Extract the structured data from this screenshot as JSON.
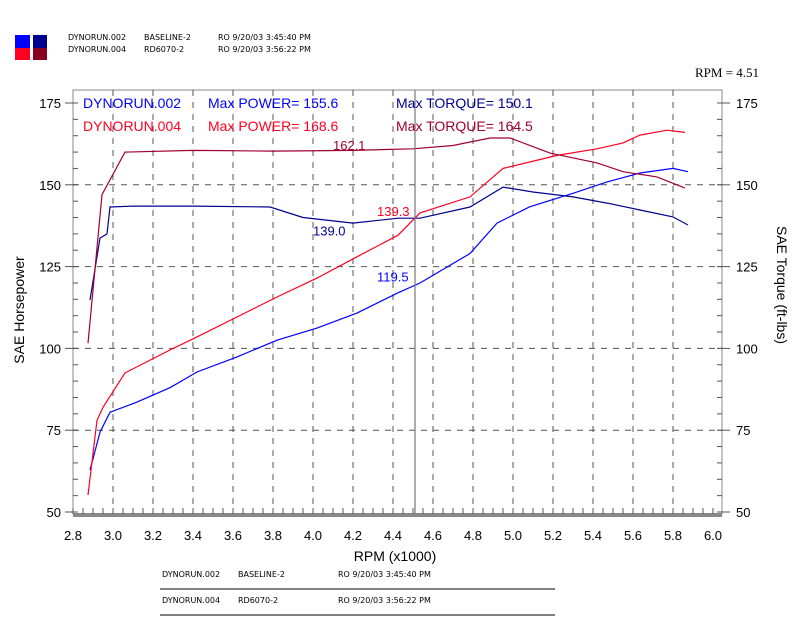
{
  "header": {
    "runs": [
      {
        "name": "DYNORUN.002",
        "desc": "BASELINE-2",
        "date": "RO  9/20/03 3:45:40 PM",
        "hp_color": "#0000ff",
        "tq_color": "#000090"
      },
      {
        "name": "DYNORUN.004",
        "desc": "RD6070-2",
        "date": "RO  9/20/03 3:56:22 PM",
        "hp_color": "#ff0020",
        "tq_color": "#a00030"
      }
    ],
    "cursor_readout": "RPM = 4.51"
  },
  "chart_data": {
    "type": "line",
    "xlabel": "RPM (x1000)",
    "ylabel": "SAE Horsepower",
    "y2label": "SAE Torque (ft-lbs)",
    "xlim": [
      2.8,
      6.0
    ],
    "ylim": [
      50,
      175
    ],
    "y2lim": [
      50,
      175
    ],
    "xticks": [
      "2.8",
      "3.0",
      "3.2",
      "3.4",
      "3.6",
      "3.8",
      "4.0",
      "4.2",
      "4.4",
      "4.6",
      "4.8",
      "5.0",
      "5.2",
      "5.4",
      "5.6",
      "5.8",
      "6.0"
    ],
    "yticks": [
      "175",
      "150",
      "125",
      "100",
      "75",
      "50"
    ],
    "grid": true,
    "cursor_rpm": 4.51,
    "legend": [
      {
        "run": "DYNORUN.002",
        "power": "Max POWER= 155.6",
        "torque": "Max TORQUE= 150.1"
      },
      {
        "run": "DYNORUN.004",
        "power": "Max POWER= 168.6",
        "torque": "Max TORQUE= 164.5"
      }
    ],
    "series": [
      {
        "run": "DYNORUN.002",
        "kind": "power",
        "color": "#0000ff",
        "x": [
          2.885,
          2.935,
          2.985,
          3.12,
          3.285,
          3.42,
          3.62,
          3.82,
          4.02,
          4.22,
          4.425,
          4.535,
          4.785,
          4.92,
          5.085,
          5.3,
          5.47,
          5.635,
          5.8,
          5.875
        ],
        "y": [
          62.8,
          74.4,
          80.5,
          83.6,
          88,
          92.8,
          97.4,
          102.5,
          106.2,
          110.8,
          117,
          120,
          129,
          138.3,
          143.3,
          147.4,
          150.9,
          153.6,
          155,
          154
        ]
      },
      {
        "run": "DYNORUN.002",
        "kind": "torque",
        "color": "#000090",
        "x": [
          2.885,
          2.935,
          2.97,
          2.985,
          3.1,
          3.4,
          3.785,
          3.95,
          4.2,
          4.425,
          4.535,
          4.785,
          4.95,
          5.1,
          5.3,
          5.47,
          5.635,
          5.8,
          5.875
        ],
        "y": [
          114.8,
          133.7,
          135,
          143.2,
          143.5,
          143.5,
          143.2,
          140,
          138.3,
          139.8,
          139.8,
          143.2,
          149.3,
          147.8,
          146.3,
          144.4,
          142.3,
          140.2,
          137.7
        ]
      },
      {
        "run": "DYNORUN.004",
        "kind": "power",
        "color": "#ff0020",
        "x": [
          2.875,
          2.92,
          2.95,
          3.06,
          3.285,
          3.42,
          3.62,
          3.82,
          4.02,
          4.22,
          4.425,
          4.535,
          4.785,
          4.95,
          5.22,
          5.42,
          5.55,
          5.635,
          5.77,
          5.86
        ],
        "y": [
          55.2,
          78,
          82,
          92.5,
          99.5,
          103.5,
          109.6,
          115.7,
          121.5,
          128,
          134.6,
          141.4,
          146.3,
          155,
          159,
          161,
          162.8,
          165.2,
          166.7,
          166
        ]
      },
      {
        "run": "DYNORUN.004",
        "kind": "torque",
        "color": "#a00030",
        "x": [
          2.875,
          2.945,
          3.06,
          3.4,
          3.8,
          4.2,
          4.5,
          4.7,
          4.885,
          4.985,
          5.185,
          5.42,
          5.55,
          5.72,
          5.86
        ],
        "y": [
          101.6,
          147,
          160,
          160.5,
          160.3,
          160.5,
          161,
          162,
          164.3,
          164.3,
          159.7,
          156.7,
          154,
          152.4,
          149
        ]
      }
    ],
    "annotations": [
      {
        "text": "162.1",
        "x": 4.1,
        "y": 162.1,
        "color": "#a00030"
      },
      {
        "text": "139.0",
        "x": 4.0,
        "y": 136,
        "color": "#000090"
      },
      {
        "text": "139.3",
        "x": 4.32,
        "y": 142,
        "color": "#ff0020"
      },
      {
        "text": "119.5",
        "x": 4.32,
        "y": 122,
        "color": "#0000ff"
      }
    ]
  },
  "footer": {
    "runs": [
      {
        "name": "DYNORUN.002",
        "desc": "BASELINE-2",
        "date": "RO  9/20/03 3:45:40 PM"
      },
      {
        "name": "DYNORUN.004",
        "desc": "RD6070-2",
        "date": "RO  9/20/03 3:56:22 PM"
      }
    ]
  }
}
